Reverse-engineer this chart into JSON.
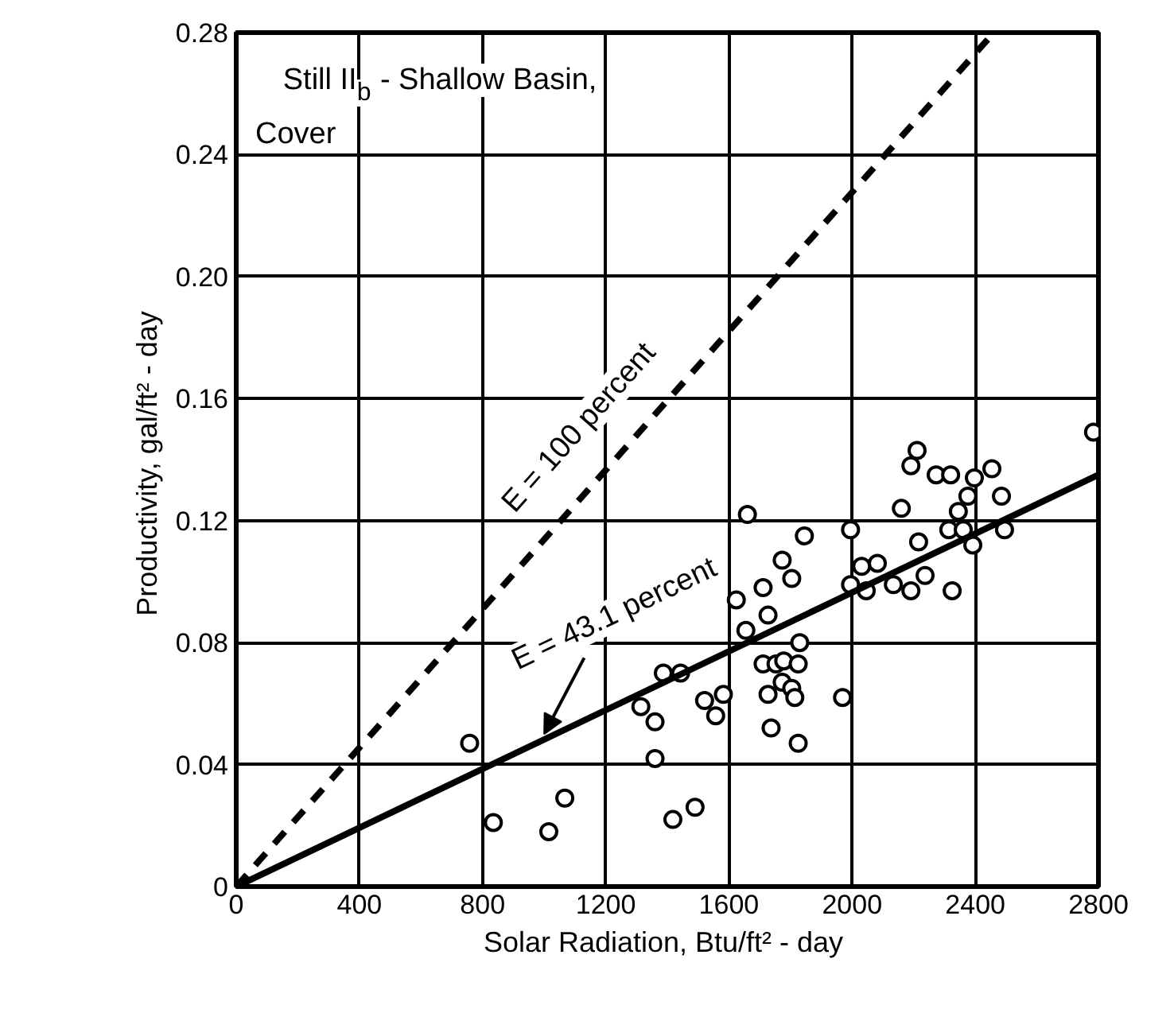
{
  "chart_data": {
    "type": "scatter",
    "xlabel": "Solar Radiation,  Btu/ft² - day",
    "ylabel": "Productivity,  gal/ft² - day",
    "annotations": [
      "Still II$_{b}$ - Shallow Basin,",
      "Cover",
      "E = 100 percent",
      {
        "text": "E = 43.1 percent",
        "x": 1000,
        "y": 0.048
      }
    ],
    "xlim": [
      0,
      2800
    ],
    "ylim": [
      0,
      0.28
    ],
    "xticks": [
      0,
      400,
      800,
      1200,
      1600,
      2000,
      2400,
      2800
    ],
    "yticks": [
      0,
      0.04,
      0.08,
      0.12,
      0.16,
      {
        "value": 0.2,
        "label": "0.20"
      },
      0.24,
      0.28
    ],
    "grid": true,
    "series": [
      {
        "color": "#000000",
        "marker": "circle",
        "x": [
          758,
          835,
          1015,
          1067,
          1314,
          1360,
          1360,
          1387,
          1443,
          1418,
          1490,
          1521,
          1557,
          1582,
          1624,
          1655,
          1660,
          1711,
          1727,
          1711,
          1753,
          1778,
          1773,
          1727,
          1804,
          1814,
          1825,
          1830,
          1737,
          1825,
          1773,
          1804,
          1845,
          1969,
          1995,
          1995,
          2031,
          2046,
          2082,
          2134,
          2191,
          2237,
          2216,
          2160,
          2211,
          2191,
          2273,
          2320,
          2325,
          2314,
          2345,
          2361,
          2376,
          2397,
          2392,
          2454,
          2485,
          2495,
          2784
        ],
        "values": [
          0.047,
          0.021,
          0.018,
          0.029,
          0.059,
          0.054,
          0.042,
          0.07,
          0.07,
          0.022,
          0.026,
          0.061,
          0.056,
          0.063,
          0.094,
          0.084,
          0.122,
          0.098,
          0.089,
          0.073,
          0.073,
          0.074,
          0.067,
          0.063,
          0.065,
          0.062,
          0.073,
          0.08,
          0.052,
          0.047,
          0.107,
          0.101,
          0.115,
          0.062,
          0.117,
          0.099,
          0.105,
          0.097,
          0.106,
          0.099,
          0.097,
          0.102,
          0.113,
          0.124,
          0.143,
          0.138,
          0.135,
          0.135,
          0.097,
          0.117,
          0.123,
          0.117,
          0.128,
          0.134,
          0.112,
          0.137,
          0.128,
          0.117,
          0.149
        ]
      },
      {
        "type": "line",
        "color": "#000000",
        "line_style": "dashed",
        "x": [
          0,
          2460
        ],
        "values": [
          0,
          0.28
        ]
      },
      {
        "type": "line",
        "color": "#000000",
        "line_style": "solid",
        "x": [
          0,
          2800
        ],
        "values": [
          0,
          0.135
        ]
      }
    ]
  }
}
